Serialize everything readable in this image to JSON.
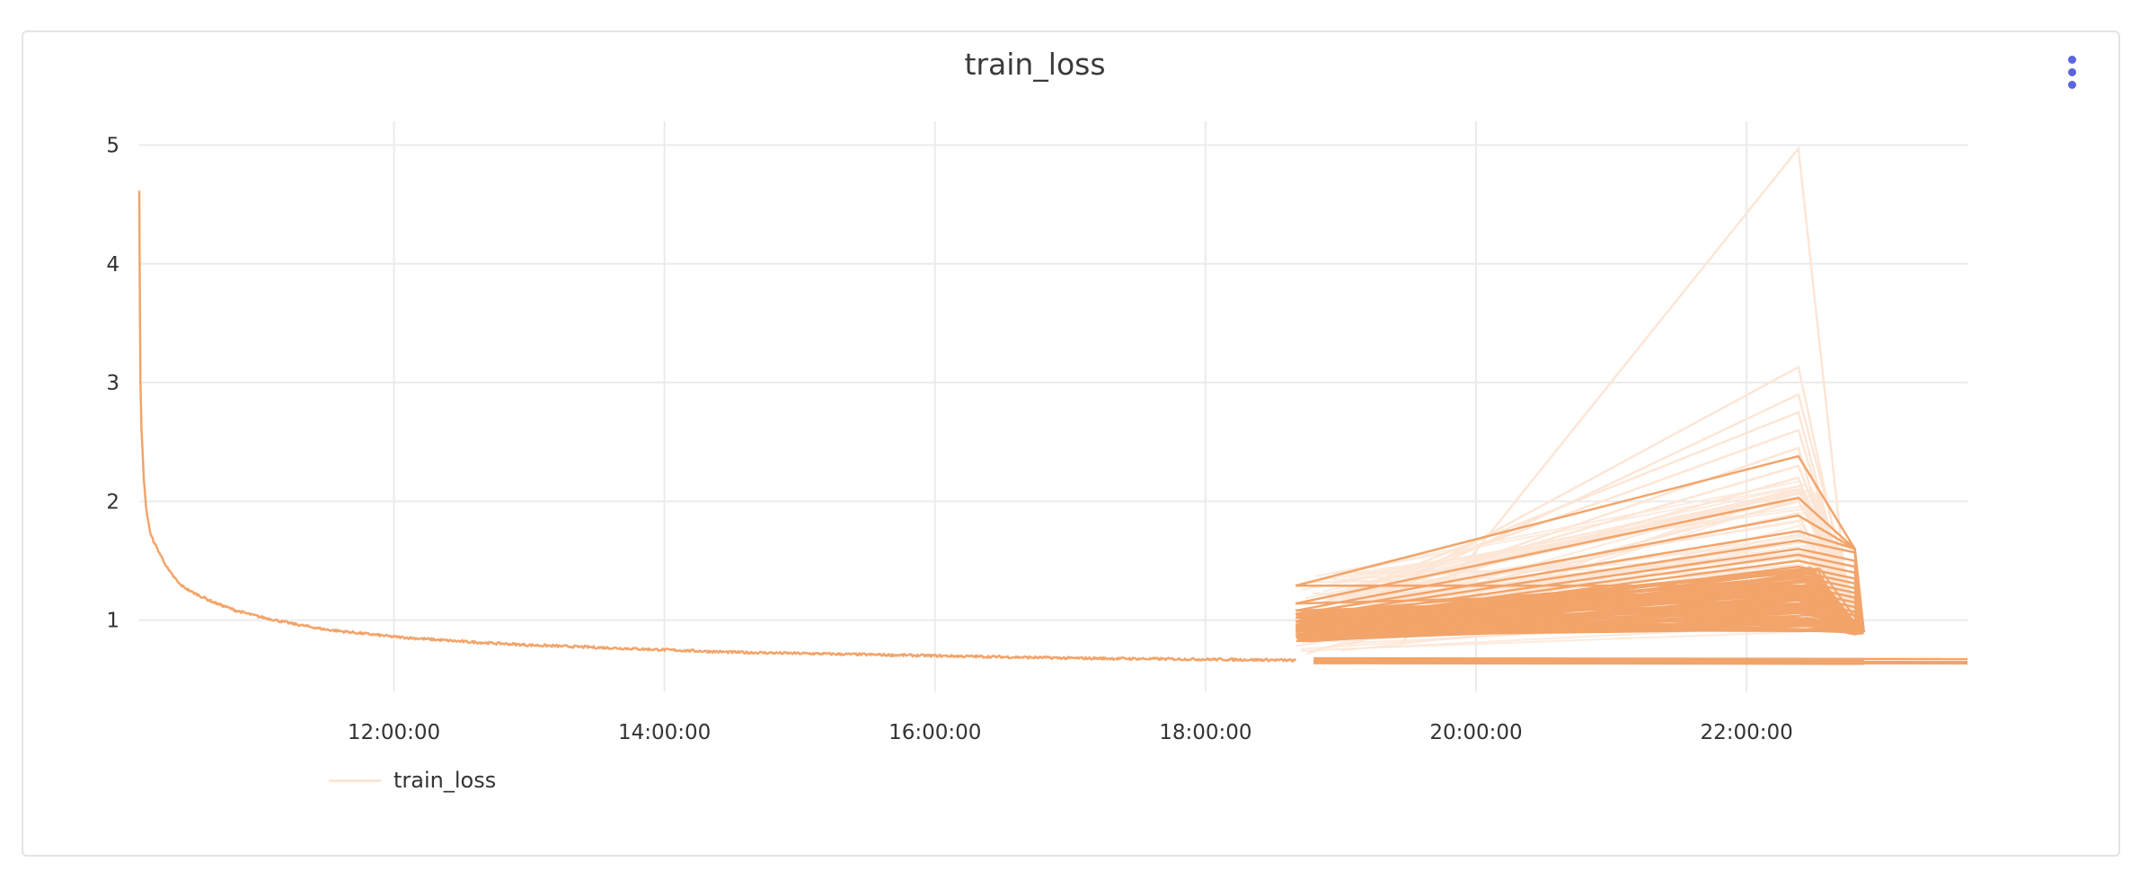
{
  "chart_data": {
    "type": "line",
    "title": "train_loss",
    "xlabel": "",
    "ylabel": "",
    "x_axis_type": "time",
    "xlim": [
      "10:07:00",
      "23:38:00"
    ],
    "ylim": [
      0.4,
      5.2
    ],
    "x_ticks": [
      "12:00:00",
      "14:00:00",
      "16:00:00",
      "18:00:00",
      "20:00:00",
      "22:00:00"
    ],
    "y_ticks": [
      1,
      2,
      3,
      4,
      5
    ],
    "grid": true,
    "legend_position": "bottom-left",
    "series": [
      {
        "name": "train_loss",
        "color_main": "#f2a46a",
        "color_light": "#fde6d6",
        "x": [
          "10:07:00",
          "10:07:30",
          "10:08:00",
          "10:09:00",
          "10:10:00",
          "10:12:00",
          "10:15:00",
          "10:20:00",
          "10:25:00",
          "10:30:00",
          "10:40:00",
          "10:50:00",
          "11:00:00",
          "11:15:00",
          "11:30:00",
          "12:00:00",
          "12:30:00",
          "13:00:00",
          "13:30:00",
          "14:00:00",
          "14:30:00",
          "15:00:00",
          "15:30:00",
          "16:00:00",
          "16:30:00",
          "17:00:00",
          "17:30:00",
          "18:00:00",
          "18:30:00",
          "18:40:00"
        ],
        "values": [
          4.62,
          3.0,
          2.6,
          2.2,
          1.95,
          1.72,
          1.6,
          1.42,
          1.3,
          1.24,
          1.15,
          1.08,
          1.03,
          0.97,
          0.92,
          0.86,
          0.82,
          0.79,
          0.77,
          0.75,
          0.73,
          0.72,
          0.71,
          0.7,
          0.69,
          0.68,
          0.675,
          0.67,
          0.665,
          0.66
        ]
      }
    ],
    "late_region": {
      "x_start": "18:40:00",
      "x_peak": "22:23:00",
      "x_end": "22:52:00",
      "x_flat_end": "23:38:00",
      "flat_value": 0.65,
      "strong_start_values": [
        1.29,
        1.14,
        1.08,
        1.05,
        1.02,
        0.99,
        0.96,
        0.94,
        0.92,
        0.9,
        0.88,
        0.86
      ],
      "strong_peak_values": [
        2.38,
        2.03,
        1.88,
        1.75,
        1.67,
        1.6,
        1.55,
        1.5,
        1.45,
        1.41,
        1.37,
        1.33,
        1.29,
        1.25,
        1.21,
        1.17,
        1.14,
        1.1,
        1.06,
        1.02,
        0.98
      ],
      "faint_peak_values": [
        4.97,
        3.13,
        2.9,
        2.75,
        2.6,
        2.45,
        2.3,
        2.2,
        2.1,
        2.0,
        1.9
      ]
    }
  }
}
